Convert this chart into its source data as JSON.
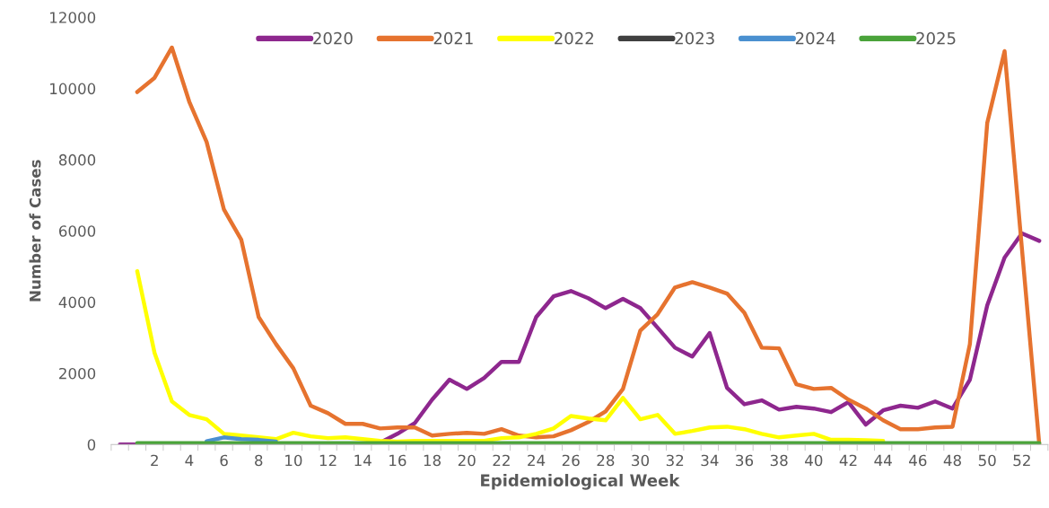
{
  "chart_data": {
    "type": "line",
    "xlabel": "Epidemiological Week",
    "ylabel": "Number of Cases",
    "categories": [
      null,
      null,
      "2",
      null,
      "4",
      null,
      "6",
      null,
      "8",
      null,
      "10",
      null,
      "12",
      null,
      "14",
      null,
      "16",
      null,
      "18",
      null,
      "20",
      null,
      "22",
      null,
      "24",
      null,
      "26",
      null,
      "28",
      null,
      "30",
      null,
      "32",
      null,
      "34",
      null,
      "36",
      null,
      "38",
      null,
      "40",
      null,
      "42",
      null,
      "44",
      null,
      "46",
      null,
      "48",
      null,
      "50",
      null,
      "52",
      null
    ],
    "ylim": [
      0,
      12000
    ],
    "yticks": [
      0,
      2000,
      4000,
      6000,
      8000,
      10000,
      12000
    ],
    "grid": false,
    "legend": "top",
    "marker": "none",
    "line_style": "solid",
    "series": [
      {
        "name": "2020",
        "color": "#8e278e",
        "values": [
          0,
          0,
          0,
          0,
          0,
          0,
          0,
          0,
          0,
          0,
          0,
          0,
          0,
          0,
          0,
          50,
          300,
          600,
          1260,
          1820,
          1560,
          1870,
          2320,
          2320,
          3580,
          4160,
          4310,
          4110,
          3830,
          4090,
          3830,
          3280,
          2720,
          2470,
          3130,
          1590,
          1130,
          1240,
          980,
          1060,
          1010,
          910,
          1190,
          560,
          960,
          1090,
          1030,
          1210,
          1010,
          1820,
          3910,
          5250,
          5930,
          5720
        ]
      },
      {
        "name": "2021",
        "color": "#e6732f",
        "values": [
          null,
          9900,
          10300,
          11150,
          9630,
          8500,
          6600,
          5750,
          3580,
          2820,
          2140,
          1090,
          880,
          580,
          580,
          450,
          480,
          480,
          250,
          300,
          330,
          300,
          430,
          250,
          200,
          230,
          400,
          630,
          930,
          1560,
          3200,
          3660,
          4410,
          4560,
          4410,
          4240,
          3700,
          2720,
          2700,
          1690,
          1560,
          1590,
          1260,
          1010,
          680,
          430,
          430,
          480,
          500,
          2820,
          9030,
          11050,
          5500,
          0
        ]
      },
      {
        "name": "2022",
        "color": "#ffff00",
        "values": [
          null,
          4870,
          2570,
          1210,
          830,
          710,
          300,
          250,
          200,
          150,
          330,
          230,
          180,
          200,
          150,
          100,
          80,
          100,
          100,
          100,
          100,
          100,
          180,
          200,
          300,
          450,
          800,
          730,
          680,
          1310,
          710,
          830,
          300,
          380,
          480,
          500,
          430,
          300,
          200,
          250,
          300,
          130,
          130,
          120,
          100,
          null,
          null,
          null,
          null,
          null,
          null,
          null,
          null,
          null
        ]
      },
      {
        "name": "2023",
        "color": "#404040",
        "values": [
          null,
          null,
          null,
          null,
          null,
          null,
          null,
          null,
          null,
          null,
          null,
          null,
          null,
          null,
          null,
          null,
          null,
          null,
          null,
          null,
          null,
          null,
          null,
          null,
          null,
          null,
          null,
          null,
          null,
          null,
          null,
          null,
          null,
          null,
          null,
          null,
          null,
          null,
          null,
          null,
          null,
          null,
          null,
          null,
          null,
          null,
          null,
          null,
          null,
          null,
          null,
          null,
          null,
          null
        ]
      },
      {
        "name": "2024",
        "color": "#4a90d0",
        "values": [
          null,
          null,
          null,
          null,
          null,
          90,
          200,
          150,
          130,
          80,
          null,
          null,
          null,
          null,
          null,
          null,
          null,
          null,
          null,
          null,
          null,
          null,
          null,
          null,
          null,
          null,
          null,
          null,
          null,
          null,
          null,
          null,
          null,
          null,
          null,
          null,
          null,
          null,
          null,
          null,
          null,
          null,
          null,
          null,
          null,
          null,
          null,
          null,
          null,
          null,
          null,
          null,
          null,
          null
        ]
      },
      {
        "name": "2025",
        "color": "#4aa33a",
        "values": [
          null,
          40,
          40,
          40,
          40,
          40,
          40,
          40,
          40,
          40,
          40,
          40,
          40,
          40,
          40,
          40,
          40,
          40,
          40,
          40,
          40,
          40,
          40,
          40,
          40,
          40,
          40,
          40,
          40,
          40,
          40,
          40,
          40,
          40,
          40,
          40,
          40,
          40,
          40,
          40,
          40,
          40,
          40,
          40,
          40,
          40,
          40,
          40,
          40,
          40,
          40,
          40,
          40,
          40
        ]
      }
    ]
  }
}
